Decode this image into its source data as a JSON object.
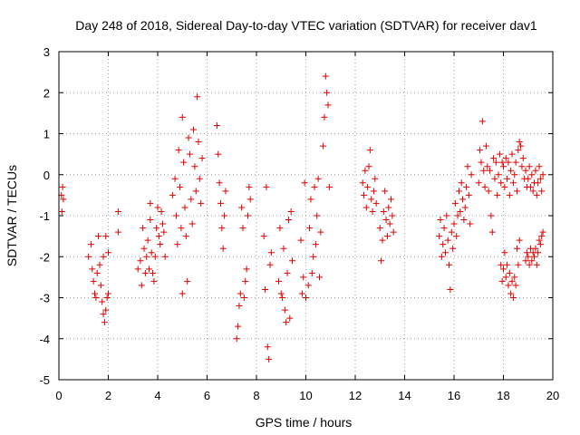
{
  "chart_data": {
    "type": "scatter",
    "title": "Day 248 of 2018, Sidereal Day-to-day VTEC variation (SDTVAR) for receiver dav1",
    "xlabel": "GPS time / hours",
    "ylabel": "SDTVAR / TECUs",
    "xlim": [
      0,
      20
    ],
    "ylim": [
      -5,
      3
    ],
    "xticks": [
      "0",
      "2",
      "4",
      "6",
      "8",
      "10",
      "12",
      "14",
      "16",
      "18",
      "20"
    ],
    "yticks": [
      "-5",
      "-4",
      "-3",
      "-2",
      "-1",
      "0",
      "1",
      "2",
      "3"
    ],
    "grid": true,
    "marker": "+",
    "color": "#e00000",
    "series": [
      {
        "name": "SDTVAR",
        "points": [
          [
            0.1,
            -0.5
          ],
          [
            0.12,
            -0.9
          ],
          [
            0.15,
            -0.3
          ],
          [
            0.18,
            -0.6
          ],
          [
            1.2,
            -2.0
          ],
          [
            1.3,
            -1.7
          ],
          [
            1.35,
            -2.3
          ],
          [
            1.4,
            -2.6
          ],
          [
            1.45,
            -2.9
          ],
          [
            1.5,
            -3.0
          ],
          [
            1.55,
            -2.4
          ],
          [
            1.6,
            -1.5
          ],
          [
            1.65,
            -2.2
          ],
          [
            1.7,
            -2.7
          ],
          [
            1.75,
            -3.1
          ],
          [
            1.8,
            -3.4
          ],
          [
            1.85,
            -3.6
          ],
          [
            1.9,
            -3.3
          ],
          [
            1.95,
            -3.0
          ],
          [
            2.0,
            -2.9
          ],
          [
            1.9,
            -1.5
          ],
          [
            2.0,
            -1.9
          ],
          [
            1.8,
            -2.0
          ],
          [
            2.4,
            -0.9
          ],
          [
            2.4,
            -1.4
          ],
          [
            3.2,
            -2.3
          ],
          [
            3.3,
            -2.1
          ],
          [
            3.35,
            -2.7
          ],
          [
            3.4,
            -1.3
          ],
          [
            3.45,
            -1.8
          ],
          [
            3.5,
            -2.4
          ],
          [
            3.55,
            -2.0
          ],
          [
            3.6,
            -1.6
          ],
          [
            3.65,
            -2.3
          ],
          [
            3.7,
            -1.1
          ],
          [
            3.7,
            -0.7
          ],
          [
            3.75,
            -1.9
          ],
          [
            3.8,
            -2.4
          ],
          [
            3.85,
            -2.6
          ],
          [
            3.9,
            -2.0
          ],
          [
            3.95,
            -1.3
          ],
          [
            4.0,
            -0.8
          ],
          [
            4.05,
            -1.5
          ],
          [
            4.1,
            -1.7
          ],
          [
            4.15,
            -0.9
          ],
          [
            4.2,
            -1.2
          ],
          [
            4.25,
            -1.4
          ],
          [
            4.3,
            -2.0
          ],
          [
            4.6,
            -0.5
          ],
          [
            4.7,
            -0.1
          ],
          [
            4.75,
            -1.0
          ],
          [
            4.8,
            -1.7
          ],
          [
            4.85,
            0.6
          ],
          [
            4.9,
            -0.3
          ],
          [
            4.95,
            -1.3
          ],
          [
            5.0,
            1.4
          ],
          [
            5.0,
            -2.9
          ],
          [
            5.05,
            0.3
          ],
          [
            5.1,
            -0.8
          ],
          [
            5.15,
            -1.5
          ],
          [
            5.2,
            -2.6
          ],
          [
            5.25,
            0.9
          ],
          [
            5.3,
            0.5
          ],
          [
            5.35,
            -0.6
          ],
          [
            5.4,
            -1.2
          ],
          [
            5.45,
            1.1
          ],
          [
            5.5,
            0.2
          ],
          [
            5.55,
            -0.4
          ],
          [
            5.6,
            1.9
          ],
          [
            5.65,
            0.8
          ],
          [
            5.7,
            -0.1
          ],
          [
            5.75,
            -0.7
          ],
          [
            5.8,
            0.4
          ],
          [
            6.4,
            1.2
          ],
          [
            6.45,
            0.5
          ],
          [
            6.5,
            -0.2
          ],
          [
            6.55,
            -0.7
          ],
          [
            6.6,
            -1.3
          ],
          [
            6.65,
            -1.8
          ],
          [
            6.7,
            -1.0
          ],
          [
            6.75,
            -0.4
          ],
          [
            7.2,
            -4.0
          ],
          [
            7.25,
            -3.7
          ],
          [
            7.3,
            -3.2
          ],
          [
            7.35,
            -2.9
          ],
          [
            7.4,
            -0.8
          ],
          [
            7.45,
            -1.3
          ],
          [
            7.5,
            -3.0
          ],
          [
            7.55,
            -2.6
          ],
          [
            7.6,
            -2.3
          ],
          [
            7.65,
            -1.0
          ],
          [
            7.7,
            -0.3
          ],
          [
            7.75,
            -0.6
          ],
          [
            8.3,
            -1.5
          ],
          [
            8.35,
            -2.8
          ],
          [
            8.4,
            -0.3
          ],
          [
            8.45,
            -4.2
          ],
          [
            8.5,
            -4.5
          ],
          [
            8.55,
            -2.2
          ],
          [
            8.6,
            -1.9
          ],
          [
            8.9,
            -2.6
          ],
          [
            8.95,
            -1.3
          ],
          [
            9.0,
            -2.9
          ],
          [
            9.05,
            -3.0
          ],
          [
            9.1,
            -1.8
          ],
          [
            9.15,
            -3.3
          ],
          [
            9.2,
            -3.6
          ],
          [
            9.25,
            -2.4
          ],
          [
            9.3,
            -1.1
          ],
          [
            9.35,
            -3.5
          ],
          [
            9.4,
            -0.9
          ],
          [
            9.45,
            -2.1
          ],
          [
            9.8,
            -1.6
          ],
          [
            9.85,
            -2.9
          ],
          [
            9.9,
            -2.5
          ],
          [
            9.95,
            -0.2
          ],
          [
            10.0,
            -3.0
          ],
          [
            10.1,
            -2.7
          ],
          [
            10.15,
            -1.3
          ],
          [
            10.2,
            -0.6
          ],
          [
            10.25,
            -2.4
          ],
          [
            10.3,
            -2.0
          ],
          [
            10.35,
            -0.3
          ],
          [
            10.4,
            -1.7
          ],
          [
            10.45,
            -1.0
          ],
          [
            10.5,
            -0.1
          ],
          [
            10.55,
            -2.5
          ],
          [
            10.6,
            -1.4
          ],
          [
            10.7,
            0.7
          ],
          [
            10.75,
            1.4
          ],
          [
            10.8,
            2.4
          ],
          [
            10.85,
            2.0
          ],
          [
            10.9,
            1.7
          ],
          [
            10.95,
            -0.3
          ],
          [
            12.3,
            -0.2
          ],
          [
            12.35,
            -0.5
          ],
          [
            12.4,
            0.1
          ],
          [
            12.45,
            -0.8
          ],
          [
            12.5,
            -0.3
          ],
          [
            12.55,
            0.2
          ],
          [
            12.6,
            0.6
          ],
          [
            12.65,
            -0.6
          ],
          [
            12.7,
            -0.9
          ],
          [
            12.75,
            -0.4
          ],
          [
            12.8,
            -0.1
          ],
          [
            12.85,
            -0.7
          ],
          [
            13.0,
            -1.3
          ],
          [
            13.05,
            -2.1
          ],
          [
            13.1,
            -1.6
          ],
          [
            13.15,
            -0.9
          ],
          [
            13.2,
            -0.4
          ],
          [
            13.25,
            -1.1
          ],
          [
            13.3,
            -1.5
          ],
          [
            13.35,
            -0.8
          ],
          [
            13.4,
            -1.2
          ],
          [
            13.45,
            -0.6
          ],
          [
            13.5,
            -1.0
          ],
          [
            13.55,
            -1.4
          ],
          [
            15.4,
            -1.5
          ],
          [
            15.45,
            -1.1
          ],
          [
            15.5,
            -2.0
          ],
          [
            15.55,
            -1.7
          ],
          [
            15.6,
            -1.3
          ],
          [
            15.65,
            -1.9
          ],
          [
            15.7,
            -1.0
          ],
          [
            15.75,
            -1.6
          ],
          [
            15.8,
            -2.2
          ],
          [
            15.85,
            -2.8
          ],
          [
            15.9,
            -1.4
          ],
          [
            15.95,
            -1.8
          ],
          [
            16.0,
            -1.2
          ],
          [
            16.05,
            -0.7
          ],
          [
            16.1,
            -1.5
          ],
          [
            16.15,
            -1.0
          ],
          [
            16.2,
            -0.4
          ],
          [
            16.25,
            -0.9
          ],
          [
            16.3,
            -0.2
          ],
          [
            16.35,
            -0.6
          ],
          [
            16.4,
            -1.1
          ],
          [
            16.45,
            -0.8
          ],
          [
            16.5,
            -0.3
          ],
          [
            16.55,
            0.2
          ],
          [
            16.6,
            -0.5
          ],
          [
            16.65,
            -1.2
          ],
          [
            16.7,
            0.0
          ],
          [
            17.0,
            -0.2
          ],
          [
            17.05,
            0.6
          ],
          [
            17.1,
            0.3
          ],
          [
            17.15,
            1.3
          ],
          [
            17.2,
            0.1
          ],
          [
            17.25,
            -0.3
          ],
          [
            17.3,
            0.7
          ],
          [
            17.35,
            0.2
          ],
          [
            17.4,
            -0.4
          ],
          [
            17.45,
            0.1
          ],
          [
            17.5,
            -1.0
          ],
          [
            17.55,
            -1.4
          ],
          [
            17.6,
            0.4
          ],
          [
            17.65,
            -0.1
          ],
          [
            17.7,
            0.3
          ],
          [
            17.75,
            -0.5
          ],
          [
            17.8,
            0.0
          ],
          [
            17.85,
            0.5
          ],
          [
            17.9,
            -0.2
          ],
          [
            17.95,
            0.3
          ],
          [
            17.9,
            -2.2
          ],
          [
            17.95,
            -2.6
          ],
          [
            18.0,
            -2.3
          ],
          [
            18.05,
            -1.9
          ],
          [
            18.1,
            -2.5
          ],
          [
            18.15,
            -2.2
          ],
          [
            18.2,
            -2.7
          ],
          [
            18.25,
            -2.4
          ],
          [
            18.3,
            -2.9
          ],
          [
            18.35,
            -2.6
          ],
          [
            18.4,
            -3.0
          ],
          [
            18.45,
            -2.5
          ],
          [
            18.5,
            -2.7
          ],
          [
            18.55,
            -1.8
          ],
          [
            18.6,
            -2.2
          ],
          [
            18.65,
            -1.6
          ],
          [
            18.0,
            0.2
          ],
          [
            18.05,
            -0.3
          ],
          [
            18.1,
            0.4
          ],
          [
            18.15,
            -0.1
          ],
          [
            18.2,
            0.3
          ],
          [
            18.25,
            -0.5
          ],
          [
            18.3,
            0.1
          ],
          [
            18.35,
            0.5
          ],
          [
            18.4,
            -0.2
          ],
          [
            18.45,
            0.0
          ],
          [
            18.5,
            0.3
          ],
          [
            18.55,
            -0.4
          ],
          [
            18.6,
            0.6
          ],
          [
            18.65,
            0.8
          ],
          [
            18.7,
            0.7
          ],
          [
            18.75,
            0.2
          ],
          [
            18.8,
            0.4
          ],
          [
            18.85,
            -0.1
          ],
          [
            18.9,
            0.1
          ],
          [
            18.95,
            -0.3
          ],
          [
            18.9,
            -2.1
          ],
          [
            18.95,
            -1.9
          ],
          [
            19.0,
            -2.0
          ],
          [
            19.05,
            -2.2
          ],
          [
            19.1,
            -1.8
          ],
          [
            19.15,
            -2.1
          ],
          [
            19.2,
            -1.9
          ],
          [
            19.25,
            -2.0
          ],
          [
            19.3,
            -1.8
          ],
          [
            19.35,
            -2.2
          ],
          [
            19.4,
            -1.9
          ],
          [
            19.45,
            -1.6
          ],
          [
            19.5,
            -1.7
          ],
          [
            19.55,
            -1.5
          ],
          [
            19.6,
            -1.4
          ],
          [
            19.0,
            -0.1
          ],
          [
            19.05,
            0.2
          ],
          [
            19.1,
            -0.3
          ],
          [
            19.15,
            0.0
          ],
          [
            19.2,
            -0.4
          ],
          [
            19.25,
            -0.2
          ],
          [
            19.3,
            0.1
          ],
          [
            19.35,
            -0.5
          ],
          [
            19.4,
            -0.2
          ],
          [
            19.45,
            0.2
          ],
          [
            19.5,
            -0.1
          ],
          [
            19.55,
            -0.4
          ],
          [
            19.6,
            0.0
          ]
        ]
      }
    ]
  }
}
